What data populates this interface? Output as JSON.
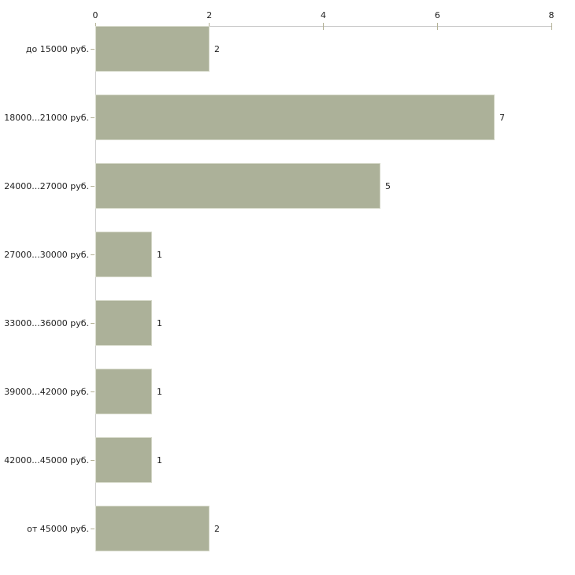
{
  "chart_data": {
    "type": "bar",
    "orientation": "horizontal",
    "title": "",
    "xlabel": "",
    "ylabel": "",
    "categories": [
      "до 15000 руб.",
      "18000...21000 руб.",
      "24000...27000 руб.",
      "27000...30000 руб.",
      "33000...36000 руб.",
      "39000...42000 руб.",
      "42000...45000 руб.",
      "от 45000 руб."
    ],
    "values": [
      2,
      7,
      5,
      1,
      1,
      1,
      1,
      2
    ],
    "value_labels": [
      "2",
      "7",
      "5",
      "1",
      "1",
      "1",
      "1",
      "2"
    ],
    "xlim": [
      0,
      8
    ],
    "x_ticks": [
      0,
      2,
      4,
      6,
      8
    ],
    "axis_position": "top",
    "grid": false,
    "legend": false,
    "colors": {
      "background": "#ffffff",
      "bar_fill": "#acb199",
      "bar_edge": "#d6d9ca",
      "axis_line": "#c9c9c9",
      "tick_mark": "#b3b195",
      "text": "#1f1f1f"
    }
  }
}
